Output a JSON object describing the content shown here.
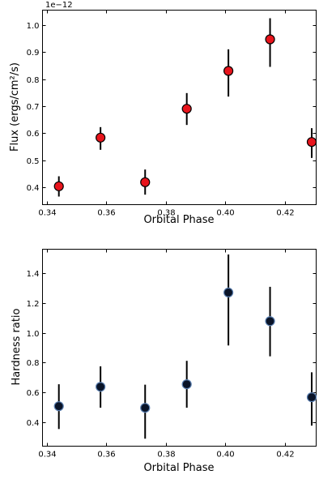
{
  "chart_data": [
    {
      "type": "scatter",
      "xlabel": "Orbital Phase",
      "ylabel": "Flux (ergs/cm²/s)",
      "y_offset_label": "1e−12",
      "xlim": [
        0.3385,
        0.4305
      ],
      "ylim": [
        0.335,
        1.055
      ],
      "xticks": [
        0.34,
        0.36,
        0.38,
        0.4,
        0.42
      ],
      "xtick_labels": [
        "0.34",
        "0.36",
        "0.38",
        "0.40",
        "0.42"
      ],
      "yticks": [
        0.4,
        0.5,
        0.6,
        0.7,
        0.8,
        0.9,
        1.0
      ],
      "ytick_labels": [
        "0.4",
        "0.5",
        "0.6",
        "0.7",
        "0.8",
        "0.9",
        "1.0"
      ],
      "marker_color": "#e8141c",
      "marker_edge_color": "#000000",
      "errorbar_color": "#000000",
      "points": [
        {
          "x": 0.344,
          "y": 0.403,
          "ylo": 0.365,
          "yhi": 0.44
        },
        {
          "x": 0.358,
          "y": 0.583,
          "ylo": 0.538,
          "yhi": 0.622
        },
        {
          "x": 0.373,
          "y": 0.418,
          "ylo": 0.372,
          "yhi": 0.465
        },
        {
          "x": 0.387,
          "y": 0.69,
          "ylo": 0.63,
          "yhi": 0.748
        },
        {
          "x": 0.401,
          "y": 0.83,
          "ylo": 0.735,
          "yhi": 0.91
        },
        {
          "x": 0.415,
          "y": 0.947,
          "ylo": 0.845,
          "yhi": 1.025
        },
        {
          "x": 0.429,
          "y": 0.567,
          "ylo": 0.508,
          "yhi": 0.618
        }
      ]
    },
    {
      "type": "scatter",
      "xlabel": "Orbital Phase",
      "ylabel": "Hardness ratio",
      "xlim": [
        0.3385,
        0.4305
      ],
      "ylim": [
        0.24,
        1.56
      ],
      "xticks": [
        0.34,
        0.36,
        0.38,
        0.4,
        0.42
      ],
      "xtick_labels": [
        "0.34",
        "0.36",
        "0.38",
        "0.40",
        "0.42"
      ],
      "yticks": [
        0.4,
        0.6,
        0.8,
        1.0,
        1.2,
        1.4
      ],
      "ytick_labels": [
        "0.4",
        "0.6",
        "0.8",
        "1.0",
        "1.2",
        "1.4"
      ],
      "marker_color": "#0a1428",
      "marker_edge_color": "#5a7fb0",
      "errorbar_color": "#000000",
      "points": [
        {
          "x": 0.344,
          "y": 0.508,
          "ylo": 0.355,
          "yhi": 0.655
        },
        {
          "x": 0.358,
          "y": 0.638,
          "ylo": 0.498,
          "yhi": 0.775
        },
        {
          "x": 0.373,
          "y": 0.497,
          "ylo": 0.29,
          "yhi": 0.652
        },
        {
          "x": 0.387,
          "y": 0.655,
          "ylo": 0.498,
          "yhi": 0.812
        },
        {
          "x": 0.401,
          "y": 1.27,
          "ylo": 0.915,
          "yhi": 1.525
        },
        {
          "x": 0.415,
          "y": 1.078,
          "ylo": 0.842,
          "yhi": 1.308
        },
        {
          "x": 0.429,
          "y": 0.568,
          "ylo": 0.378,
          "yhi": 0.735
        }
      ]
    }
  ]
}
